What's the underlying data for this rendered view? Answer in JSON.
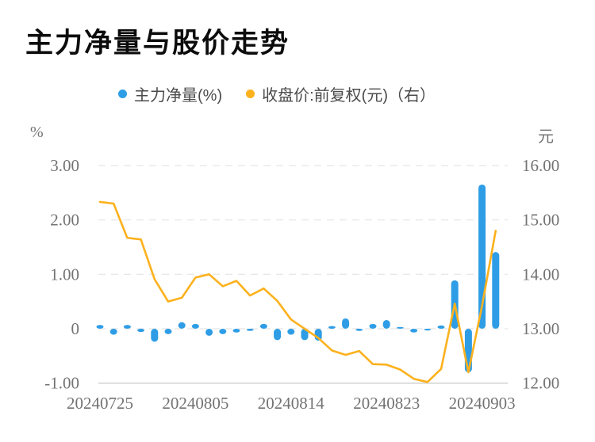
{
  "title": "主力净量与股价走势",
  "legend": {
    "items": [
      {
        "label": "主力净量(%)",
        "color": "#2e9de6"
      },
      {
        "label": "收盘价:前复权(元)（右）",
        "color": "#fcb11d"
      }
    ]
  },
  "chart_data": {
    "type": "combo-bar-line",
    "title": "主力净量与股价走势",
    "x_count": 30,
    "x_tick_labels": [
      "20240725",
      "20240805",
      "20240814",
      "20240823",
      "20240903"
    ],
    "x_tick_indices": [
      0,
      7,
      14,
      21,
      28
    ],
    "left_axis": {
      "unit": "%",
      "min": -1,
      "max": 3,
      "tick_values": [
        3,
        2,
        1,
        0,
        -1
      ],
      "tick_labels": [
        "3.00",
        "2.00",
        "1.00",
        "0",
        "-1.00"
      ]
    },
    "right_axis": {
      "unit": "元",
      "min": 12,
      "max": 16,
      "tick_labels": [
        "16.00",
        "15.00",
        "14.00",
        "13.00",
        "12.00"
      ]
    },
    "grid": "horizontal-dashed",
    "legend_position": "top-center",
    "series": [
      {
        "name": "主力净量(%)",
        "type": "bar",
        "axis": "left",
        "color": "#2e9de6",
        "values": [
          0.07,
          -0.11,
          0.07,
          -0.06,
          -0.24,
          -0.1,
          0.12,
          0.09,
          -0.13,
          -0.1,
          -0.07,
          -0.04,
          0.09,
          -0.21,
          -0.11,
          -0.21,
          -0.22,
          0.05,
          0.19,
          -0.04,
          0.09,
          0.16,
          0.03,
          -0.07,
          -0.01,
          0.06,
          0.89,
          -0.8,
          2.65,
          1.41
        ]
      },
      {
        "name": "收盘价:前复权(元)（右）",
        "type": "line",
        "axis": "right",
        "color": "#fcb11d",
        "values": [
          15.33,
          15.3,
          14.67,
          14.64,
          13.91,
          13.5,
          13.57,
          13.94,
          14.0,
          13.78,
          13.88,
          13.61,
          13.74,
          13.51,
          13.17,
          13.0,
          12.83,
          12.6,
          12.52,
          12.59,
          12.35,
          12.34,
          12.25,
          12.08,
          12.02,
          12.26,
          13.46,
          12.2,
          13.42,
          14.8
        ]
      }
    ]
  },
  "colors": {
    "background": "#ffffff",
    "title_text": "#0c0c0c",
    "legend_text": "#4b4b4b",
    "axis_text": "#737373",
    "grid": "#e8e8e8",
    "axis_line": "#dcdcdc",
    "bar": "#2e9de6",
    "line": "#fcb11d"
  }
}
